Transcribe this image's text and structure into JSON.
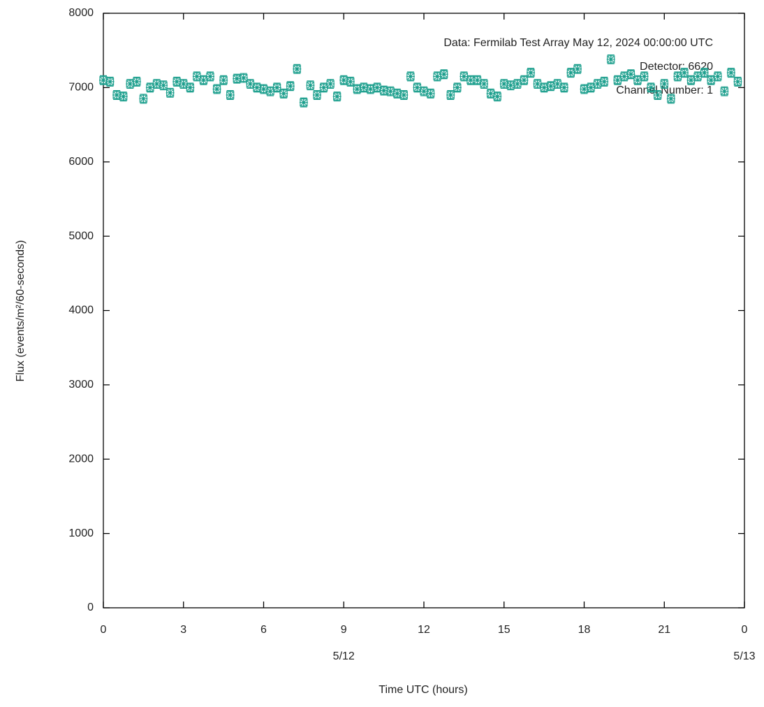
{
  "chart_data": {
    "type": "errorbar-scatter",
    "xlabel": "Time UTC (hours)",
    "ylabel": "Flux (events/m²/60-seconds)",
    "annotations": [
      "Data: Fermilab Test Array May 12, 2024 00:00:00 UTC",
      "Detector: 6620",
      "Channel Number: 1"
    ],
    "xlim": [
      0,
      24
    ],
    "ylim": [
      0,
      8000
    ],
    "xticks": [
      0,
      3,
      6,
      9,
      12,
      15,
      18,
      21,
      {
        "value": 24,
        "label": "0"
      }
    ],
    "date_ticks": [
      {
        "value": 9,
        "label": "5/12"
      },
      {
        "value": 24,
        "label": "5/13"
      }
    ],
    "yticks": [
      0,
      1000,
      2000,
      3000,
      4000,
      5000,
      6000,
      7000,
      8000
    ],
    "grid": false,
    "series": [
      {
        "color": "#1a9e8c",
        "x": [
          0,
          0.25,
          0.5,
          0.75,
          1,
          1.25,
          1.5,
          1.75,
          2,
          2.25,
          2.5,
          2.75,
          3,
          3.25,
          3.5,
          3.75,
          4,
          4.25,
          4.5,
          4.75,
          5,
          5.25,
          5.5,
          5.75,
          6,
          6.25,
          6.5,
          6.75,
          7,
          7.25,
          7.5,
          7.75,
          8,
          8.25,
          8.5,
          8.75,
          9,
          9.25,
          9.5,
          9.75,
          10,
          10.25,
          10.5,
          10.75,
          11,
          11.25,
          11.5,
          11.75,
          12,
          12.25,
          12.5,
          12.75,
          13,
          13.25,
          13.5,
          13.75,
          14,
          14.25,
          14.5,
          14.75,
          15,
          15.25,
          15.5,
          15.75,
          16,
          16.25,
          16.5,
          16.75,
          17,
          17.25,
          17.5,
          17.75,
          18,
          18.25,
          18.5,
          18.75,
          19,
          19.25,
          19.5,
          19.75,
          20,
          20.25,
          20.5,
          20.75,
          21,
          21.25,
          21.5,
          21.75,
          22,
          22.25,
          22.5,
          22.75,
          23,
          23.25,
          23.5,
          23.75
        ],
        "values": [
          7100,
          7080,
          6900,
          6880,
          7050,
          7080,
          6850,
          7000,
          7050,
          7030,
          6930,
          7080,
          7050,
          7000,
          7150,
          7100,
          7150,
          6980,
          7100,
          6900,
          7120,
          7130,
          7050,
          7000,
          6980,
          6950,
          7000,
          6920,
          7020,
          7250,
          6800,
          7030,
          6900,
          7000,
          7050,
          6880,
          7100,
          7080,
          6980,
          7000,
          6980,
          7000,
          6960,
          6950,
          6920,
          6900,
          7150,
          7000,
          6950,
          6920,
          7150,
          7180,
          6900,
          7000,
          7150,
          7100,
          7100,
          7050,
          6920,
          6880,
          7050,
          7030,
          7050,
          7100,
          7200,
          7050,
          7000,
          7020,
          7050,
          7000,
          7200,
          7250,
          6980,
          7000,
          7050,
          7080,
          7380,
          7100,
          7150,
          7180,
          7100,
          7150,
          7000,
          6900,
          7050,
          6850,
          7150,
          7200,
          7100,
          7150,
          7200,
          7100,
          7150,
          6950,
          7200,
          7080
        ],
        "errors": [
          60,
          60,
          60,
          60,
          60,
          60,
          60,
          60,
          60,
          60,
          60,
          60,
          60,
          60,
          60,
          60,
          60,
          60,
          60,
          60,
          60,
          60,
          60,
          60,
          60,
          60,
          60,
          60,
          60,
          60,
          60,
          60,
          60,
          60,
          60,
          60,
          60,
          60,
          60,
          60,
          60,
          60,
          60,
          60,
          60,
          60,
          60,
          60,
          60,
          60,
          60,
          60,
          60,
          60,
          60,
          60,
          60,
          60,
          60,
          60,
          60,
          60,
          60,
          60,
          60,
          60,
          60,
          60,
          60,
          60,
          60,
          60,
          60,
          60,
          60,
          60,
          60,
          60,
          60,
          60,
          60,
          60,
          60,
          60,
          60,
          60,
          60,
          60,
          60,
          60,
          60,
          60,
          60,
          60,
          60,
          60
        ]
      }
    ]
  }
}
